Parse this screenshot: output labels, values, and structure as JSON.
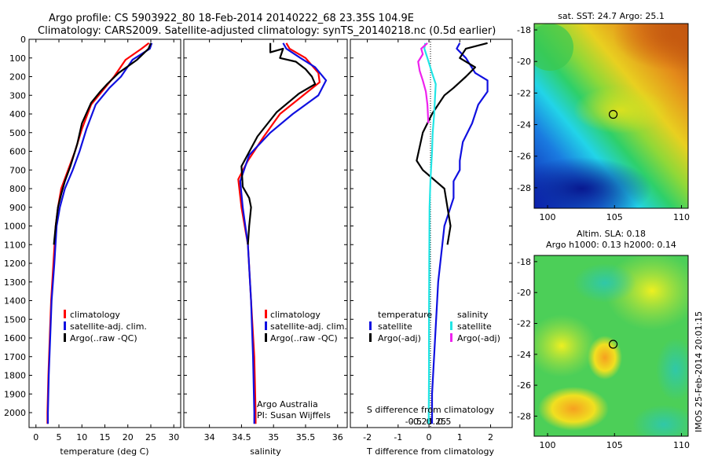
{
  "header": {
    "line1": "Argo profile: CS 5903922_80 18-Feb-2014 20140222_68 23.35S 104.9E",
    "line2": "Climatology: CARS2009. Satellite-adjusted climatology: synTS_20140218.nc (0.5d earlier)"
  },
  "footer_stamp": "IMOS 25-Feb-2014 20:01:15",
  "colors": {
    "climatology": "#ff0000",
    "satellite": "#1010e0",
    "argo": "#000000",
    "cyan": "#22e5e5",
    "magenta": "#ee22ee"
  },
  "chart_data": [
    {
      "type": "line",
      "id": "temperature",
      "xlabel": "temperature (deg C)",
      "xlim": [
        -1.5,
        31.5
      ],
      "ylim": [
        0,
        2080
      ],
      "xticks": [
        0,
        5,
        10,
        15,
        20,
        25,
        30
      ],
      "yticks": [
        0,
        100,
        200,
        300,
        400,
        500,
        600,
        700,
        800,
        900,
        1000,
        1100,
        1200,
        1300,
        1400,
        1500,
        1600,
        1700,
        1800,
        1900,
        2000
      ],
      "legend": [
        "climatology",
        "satellite-adj. clim.",
        "Argo(..raw -QC)"
      ],
      "series": [
        {
          "name": "climatology",
          "color": "#ff0000",
          "points": [
            [
              24.6,
              20
            ],
            [
              23,
              50
            ],
            [
              19.5,
              110
            ],
            [
              17,
              200
            ],
            [
              15,
              260
            ],
            [
              12,
              350
            ],
            [
              10,
              480
            ],
            [
              8.5,
              600
            ],
            [
              7,
              700
            ],
            [
              5.5,
              800
            ],
            [
              4.8,
              900
            ],
            [
              4.3,
              1000
            ],
            [
              3.8,
              1200
            ],
            [
              3.3,
              1400
            ],
            [
              3,
              1600
            ],
            [
              2.7,
              1800
            ],
            [
              2.5,
              2000
            ],
            [
              2.5,
              2060
            ]
          ]
        },
        {
          "name": "satellite-adj. clim.",
          "color": "#1010e0",
          "points": [
            [
              25.2,
              20
            ],
            [
              24.8,
              50
            ],
            [
              21,
              110
            ],
            [
              18.5,
              200
            ],
            [
              16,
              260
            ],
            [
              13,
              350
            ],
            [
              11,
              480
            ],
            [
              9.5,
              600
            ],
            [
              8,
              700
            ],
            [
              6.3,
              800
            ],
            [
              5.2,
              900
            ],
            [
              4.5,
              1000
            ],
            [
              4,
              1200
            ],
            [
              3.4,
              1400
            ],
            [
              3.1,
              1600
            ],
            [
              2.8,
              1800
            ],
            [
              2.6,
              2000
            ],
            [
              2.6,
              2060
            ]
          ]
        },
        {
          "name": "Argo(..raw -QC)",
          "color": "#000000",
          "points": [
            [
              25,
              20
            ],
            [
              24.5,
              50
            ],
            [
              22,
              110
            ],
            [
              18,
              180
            ],
            [
              15.5,
              240
            ],
            [
              14,
              280
            ],
            [
              12,
              340
            ],
            [
              10,
              450
            ],
            [
              9,
              560
            ],
            [
              7.5,
              680
            ],
            [
              6.3,
              760
            ],
            [
              5.5,
              830
            ],
            [
              4.8,
              900
            ],
            [
              4.3,
              1000
            ],
            [
              3.9,
              1100
            ]
          ]
        }
      ]
    },
    {
      "type": "line",
      "id": "salinity",
      "xlabel": "salinity",
      "xlim": [
        33.6,
        36.15
      ],
      "ylim": [
        0,
        2080
      ],
      "xticks": [
        34,
        34.5,
        35,
        35.5,
        36
      ],
      "legend": [
        "climatology",
        "satellite-adj. clim.",
        "Argo(..raw -QC)"
      ],
      "credit1": "Argo Australia",
      "credit2": "PI: Susan Wijffels",
      "series": [
        {
          "name": "climatology",
          "color": "#ff0000",
          "points": [
            [
              35.2,
              20
            ],
            [
              35.25,
              50
            ],
            [
              35.5,
              100
            ],
            [
              35.7,
              180
            ],
            [
              35.72,
              230
            ],
            [
              35.5,
              290
            ],
            [
              35.1,
              400
            ],
            [
              34.85,
              520
            ],
            [
              34.6,
              650
            ],
            [
              34.45,
              750
            ],
            [
              34.5,
              900
            ],
            [
              34.6,
              1100
            ],
            [
              34.65,
              1400
            ],
            [
              34.7,
              1700
            ],
            [
              34.72,
              2000
            ],
            [
              34.72,
              2060
            ]
          ]
        },
        {
          "name": "satellite-adj. clim.",
          "color": "#1010e0",
          "points": [
            [
              35.15,
              20
            ],
            [
              35.2,
              50
            ],
            [
              35.42,
              100
            ],
            [
              35.65,
              150
            ],
            [
              35.82,
              220
            ],
            [
              35.7,
              300
            ],
            [
              35.3,
              400
            ],
            [
              34.95,
              500
            ],
            [
              34.62,
              620
            ],
            [
              34.48,
              760
            ],
            [
              34.52,
              900
            ],
            [
              34.6,
              1100
            ],
            [
              34.65,
              1400
            ],
            [
              34.68,
              1700
            ],
            [
              34.7,
              2000
            ],
            [
              34.7,
              2060
            ]
          ]
        },
        {
          "name": "Argo(..raw -QC)",
          "color": "#000000",
          "points": [
            [
              34.95,
              20
            ],
            [
              34.95,
              70
            ],
            [
              35.15,
              50
            ],
            [
              35.1,
              100
            ],
            [
              35.35,
              120
            ],
            [
              35.5,
              160
            ],
            [
              35.6,
              200
            ],
            [
              35.65,
              240
            ],
            [
              35.4,
              290
            ],
            [
              35.05,
              390
            ],
            [
              34.75,
              520
            ],
            [
              34.5,
              680
            ],
            [
              34.52,
              790
            ],
            [
              34.62,
              850
            ],
            [
              34.65,
              900
            ],
            [
              34.62,
              1000
            ],
            [
              34.6,
              1100
            ]
          ]
        }
      ]
    },
    {
      "type": "line",
      "id": "differences",
      "xlabel": "T difference from climatology",
      "top_xlabel": "S difference from climatology",
      "xlim": [
        -2.55,
        2.7
      ],
      "ylim": [
        0,
        2080
      ],
      "xticks": [
        -2,
        -1,
        0,
        1,
        2
      ],
      "top_xticks_values": [
        -0.5,
        -0.25,
        0,
        0.25,
        0.5
      ],
      "top_xtick_labels": [
        "-0.5",
        "-0.25",
        "0",
        "0.25",
        "0.5"
      ],
      "legend_temperature_title": "temperature",
      "legend_salinity_title": "salinity",
      "legend": [
        {
          "label": "satellite",
          "color": "#1010e0"
        },
        {
          "label": "Argo(-adj)",
          "color": "#000000"
        },
        {
          "label": "satellite",
          "color": "#22e5e5"
        },
        {
          "label": "Argo(-adj)",
          "color": "#ee22ee"
        }
      ],
      "series": [
        {
          "name": "T satellite",
          "color": "#1010e0",
          "points": [
            [
              1.0,
              20
            ],
            [
              0.9,
              50
            ],
            [
              1.2,
              100
            ],
            [
              1.5,
              180
            ],
            [
              1.9,
              220
            ],
            [
              1.9,
              280
            ],
            [
              1.6,
              350
            ],
            [
              1.4,
              450
            ],
            [
              1.1,
              550
            ],
            [
              1.0,
              650
            ],
            [
              1.0,
              700
            ],
            [
              0.8,
              760
            ],
            [
              0.8,
              850
            ],
            [
              0.7,
              900
            ],
            [
              0.5,
              1000
            ],
            [
              0.3,
              1300
            ],
            [
              0.2,
              1600
            ],
            [
              0.1,
              1900
            ],
            [
              0.1,
              2060
            ]
          ]
        },
        {
          "name": "T Argo",
          "color": "#000000",
          "points": [
            [
              1.9,
              20
            ],
            [
              1.2,
              50
            ],
            [
              1.0,
              100
            ],
            [
              1.5,
              150
            ],
            [
              1.2,
              200
            ],
            [
              0.8,
              260
            ],
            [
              0.5,
              300
            ],
            [
              0.3,
              350
            ],
            [
              0.1,
              400
            ],
            [
              -0.2,
              500
            ],
            [
              -0.4,
              650
            ],
            [
              -0.2,
              700
            ],
            [
              0.5,
              800
            ],
            [
              0.6,
              900
            ],
            [
              0.7,
              1000
            ],
            [
              0.6,
              1100
            ]
          ]
        },
        {
          "name": "S satellite",
          "color": "#22e5e5",
          "points": [
            [
              -0.12,
              20
            ],
            [
              -0.15,
              50
            ],
            [
              -0.05,
              100
            ],
            [
              0.1,
              180
            ],
            [
              0.22,
              240
            ],
            [
              0.2,
              300
            ],
            [
              0.17,
              400
            ],
            [
              0.12,
              500
            ],
            [
              0.1,
              600
            ],
            [
              0.05,
              750
            ],
            [
              0.02,
              900
            ],
            [
              0.01,
              1200
            ],
            [
              0,
              1500
            ],
            [
              0,
              1800
            ],
            [
              -0.01,
              2060
            ]
          ]
        },
        {
          "name": "S Argo",
          "color": "#ee22ee",
          "points": [
            [
              -0.05,
              20
            ],
            [
              -0.25,
              50
            ],
            [
              -0.2,
              80
            ],
            [
              -0.35,
              120
            ],
            [
              -0.3,
              170
            ],
            [
              -0.2,
              220
            ],
            [
              -0.1,
              280
            ],
            [
              -0.05,
              350
            ],
            [
              -0.02,
              450
            ]
          ]
        }
      ]
    },
    {
      "type": "heatmap",
      "id": "sst_map",
      "title": "sat. SST: 24.7 Argo: 25.1",
      "xticks": [
        100,
        105,
        110
      ],
      "yticks": [
        -18,
        -20,
        -22,
        -24,
        -26,
        -28
      ],
      "xlim": [
        99,
        110.5
      ],
      "ylim": [
        -29.3,
        -17.6
      ],
      "argo_position": [
        104.9,
        -23.35
      ]
    },
    {
      "type": "heatmap",
      "id": "sla_map",
      "title_line1": "Altim. SLA: 0.18",
      "title_line2": "Argo h1000: 0.13 h2000: 0.14",
      "xticks": [
        100,
        105,
        110
      ],
      "yticks": [
        -18,
        -20,
        -22,
        -24,
        -26,
        -28
      ],
      "xlim": [
        99,
        110.5
      ],
      "ylim": [
        -29.3,
        -17.6
      ],
      "argo_position": [
        104.9,
        -23.35
      ]
    }
  ]
}
